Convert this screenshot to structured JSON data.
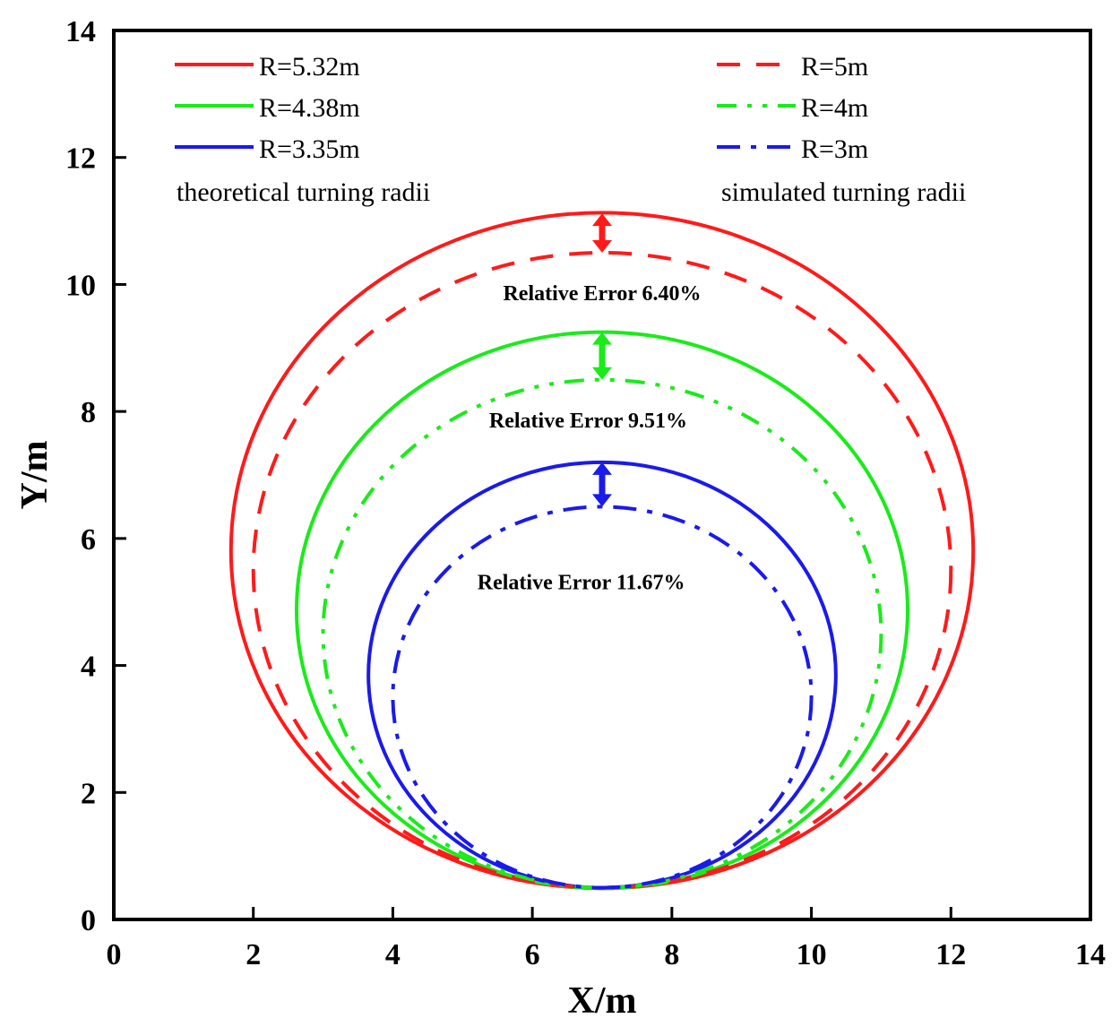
{
  "chart_data": {
    "type": "line",
    "title": "",
    "xlabel": "X/m",
    "ylabel": "Y/m",
    "xlim": [
      0,
      14
    ],
    "ylim": [
      0,
      14
    ],
    "xticks": [
      "0",
      "2",
      "4",
      "6",
      "8",
      "10",
      "12",
      "14"
    ],
    "yticks": [
      "0",
      "2",
      "4",
      "6",
      "8",
      "10",
      "12",
      "14"
    ],
    "grid": false,
    "series": [
      {
        "name": "R=5.32m",
        "group": "theoretical",
        "style": "solid",
        "color": "#ff1a1a",
        "center": [
          7.0,
          5.81
        ],
        "rx": 5.32,
        "ry": 5.32
      },
      {
        "name": "R=4.38m",
        "group": "theoretical",
        "style": "solid",
        "color": "#1aeb1a",
        "center": [
          7.0,
          4.87
        ],
        "rx": 4.38,
        "ry": 4.38
      },
      {
        "name": "R=3.35m",
        "group": "theoretical",
        "style": "solid",
        "color": "#1a1aeb",
        "center": [
          7.0,
          3.85
        ],
        "rx": 3.35,
        "ry": 3.35
      },
      {
        "name": "R=5m",
        "group": "simulated",
        "style": "dashed",
        "color": "#ff1a1a",
        "center": [
          7.0,
          5.5
        ],
        "rx": 5.0,
        "ry": 5.0
      },
      {
        "name": "R=4m",
        "group": "simulated",
        "style": "dash-dot-dot",
        "color": "#1aeb1a",
        "center": [
          7.0,
          4.5
        ],
        "rx": 4.0,
        "ry": 4.0
      },
      {
        "name": "R=3m",
        "group": "simulated",
        "style": "dash-dot",
        "color": "#1a1aeb",
        "center": [
          7.0,
          3.5
        ],
        "rx": 3.0,
        "ry": 3.0
      }
    ],
    "legend_groups": [
      {
        "position": "top-left",
        "caption": "theoretical turning radii"
      },
      {
        "position": "top-right",
        "caption": "simulated turning radii"
      }
    ],
    "annotations": [
      {
        "text": "Relative Error  6.40%",
        "x": 7.0,
        "y": 9.75,
        "arrow": [
          7.0,
          11.12,
          7.0,
          10.5
        ],
        "color": "#ff1a1a"
      },
      {
        "text": "Relative Error  9.51%",
        "x": 6.8,
        "y": 7.75,
        "arrow": [
          7.0,
          9.25,
          7.0,
          8.5
        ],
        "color": "#1aeb1a"
      },
      {
        "text": "Relative Error  11.67%",
        "x": 6.7,
        "y": 5.2,
        "arrow": [
          7.0,
          7.2,
          7.0,
          6.5
        ],
        "color": "#1a1aeb"
      }
    ]
  }
}
